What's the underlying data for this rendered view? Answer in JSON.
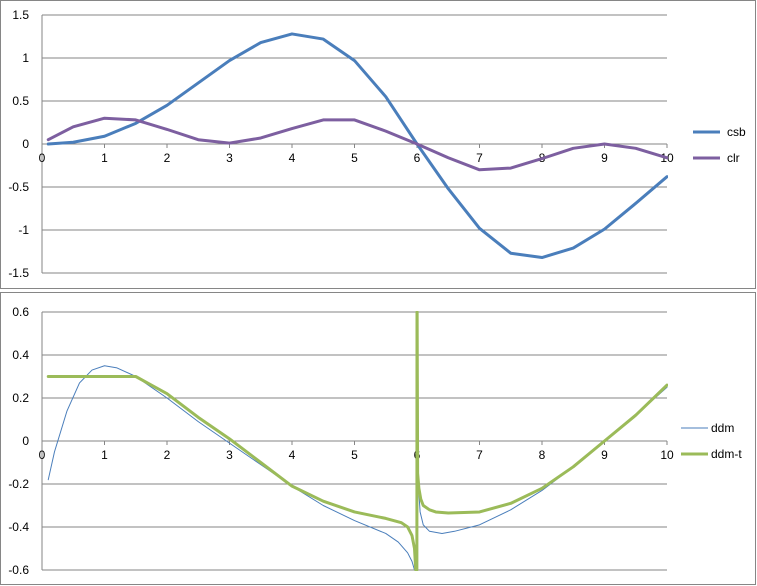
{
  "chart_data": [
    {
      "type": "line",
      "xlim": [
        0,
        10
      ],
      "ylim": [
        -1.5,
        1.5
      ],
      "x_ticks": [
        "0",
        "1",
        "2",
        "3",
        "4",
        "5",
        "6",
        "7",
        "8",
        "9",
        "10"
      ],
      "y_ticks": [
        "1.5",
        "1",
        "0.5",
        "0",
        "-0.5",
        "-1",
        "-1.5"
      ],
      "grid": true,
      "legend_position": "right",
      "series": [
        {
          "name": "csb",
          "color": "#4a7ebb",
          "width": 3,
          "x": [
            0.1,
            0.5,
            1,
            1.5,
            2,
            2.5,
            3,
            3.5,
            4,
            4.5,
            5,
            5.5,
            6,
            6.5,
            7,
            7.5,
            8,
            8.5,
            9,
            9.5,
            10
          ],
          "y": [
            0.0,
            0.02,
            0.09,
            0.24,
            0.45,
            0.71,
            0.97,
            1.18,
            1.28,
            1.22,
            0.97,
            0.55,
            0.0,
            -0.52,
            -0.98,
            -1.27,
            -1.32,
            -1.21,
            -0.99,
            -0.69,
            -0.38
          ]
        },
        {
          "name": "clr",
          "color": "#7d5fa0",
          "width": 3,
          "x": [
            0.1,
            0.5,
            1,
            1.5,
            2,
            2.5,
            3,
            3.5,
            4,
            4.5,
            5,
            5.5,
            6,
            6.5,
            7,
            7.5,
            8,
            8.5,
            9,
            9.5,
            10
          ],
          "y": [
            0.05,
            0.2,
            0.3,
            0.28,
            0.17,
            0.05,
            0.01,
            0.07,
            0.18,
            0.28,
            0.28,
            0.15,
            0.0,
            -0.16,
            -0.3,
            -0.28,
            -0.17,
            -0.05,
            0.0,
            -0.05,
            -0.16
          ]
        }
      ]
    },
    {
      "type": "line",
      "xlim": [
        0,
        10
      ],
      "ylim": [
        -0.6,
        0.6
      ],
      "x_ticks": [
        "0",
        "1",
        "2",
        "3",
        "4",
        "5",
        "6",
        "7",
        "8",
        "9",
        "10"
      ],
      "y_ticks": [
        "0.6",
        "0.4",
        "0.2",
        "0",
        "-0.2",
        "-0.4",
        "-0.6"
      ],
      "grid": true,
      "legend_position": "right",
      "series": [
        {
          "name": "ddm",
          "color": "#4a7ebb",
          "width": 1,
          "x": [
            0.1,
            0.2,
            0.4,
            0.6,
            0.8,
            1,
            1.2,
            1.5,
            2,
            2.5,
            3,
            3.5,
            4,
            4.5,
            5,
            5.5,
            5.7,
            5.85,
            5.92,
            5.96,
            5.98,
            5.99,
            5.995,
            6.0,
            6.01,
            6.02,
            6.05,
            6.1,
            6.2,
            6.4,
            6.6,
            7,
            7.5,
            8,
            8.5,
            9,
            9.5,
            10
          ],
          "y": [
            -0.18,
            -0.05,
            0.14,
            0.27,
            0.33,
            0.35,
            0.34,
            0.3,
            0.2,
            0.09,
            -0.01,
            -0.11,
            -0.21,
            -0.3,
            -0.37,
            -0.43,
            -0.47,
            -0.52,
            -0.56,
            -0.6,
            -0.6,
            -0.6,
            -0.6,
            0.6,
            0.6,
            -0.2,
            -0.33,
            -0.39,
            -0.42,
            -0.43,
            -0.42,
            -0.39,
            -0.32,
            -0.23,
            -0.12,
            0.0,
            0.12,
            0.25
          ]
        },
        {
          "name": "ddm-t",
          "color": "#9bbb59",
          "width": 3,
          "x": [
            0.1,
            0.5,
            1,
            1.5,
            2,
            2.5,
            3,
            3.5,
            4,
            4.5,
            5,
            5.5,
            5.75,
            5.85,
            5.92,
            5.96,
            5.98,
            5.99,
            5.995,
            5.998,
            6.0,
            6.002,
            6.01,
            6.03,
            6.06,
            6.1,
            6.2,
            6.3,
            6.5,
            7,
            7.5,
            8,
            8.5,
            9,
            9.5,
            10
          ],
          "y": [
            0.3,
            0.3,
            0.3,
            0.3,
            0.22,
            0.11,
            0.01,
            -0.1,
            -0.21,
            -0.28,
            -0.33,
            -0.36,
            -0.38,
            -0.4,
            -0.44,
            -0.5,
            -0.6,
            -0.6,
            -0.6,
            -0.6,
            0.6,
            0.6,
            -0.15,
            -0.22,
            -0.27,
            -0.3,
            -0.32,
            -0.33,
            -0.335,
            -0.33,
            -0.29,
            -0.22,
            -0.12,
            0.0,
            0.12,
            0.26
          ]
        }
      ]
    }
  ]
}
